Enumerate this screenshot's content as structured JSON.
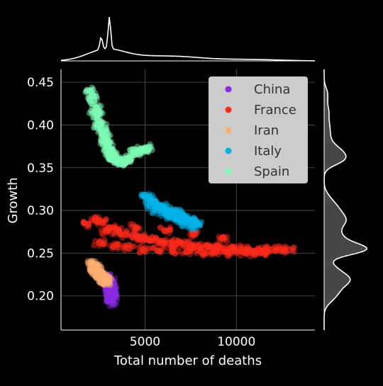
{
  "chart_data": {
    "type": "scatter",
    "title": "",
    "xlabel": "Total number of deaths",
    "ylabel": "Growth",
    "xlim": [
      400,
      14300
    ],
    "ylim": [
      0.16,
      0.465
    ],
    "x_ticks": [
      5000,
      10000
    ],
    "x_tick_labels": [
      "5000",
      "10000"
    ],
    "y_ticks": [
      0.2,
      0.25,
      0.3,
      0.35,
      0.4,
      0.45
    ],
    "y_tick_labels": [
      "0.20",
      "0.25",
      "0.30",
      "0.35",
      "0.40",
      "0.45"
    ],
    "grid": true,
    "legend_position": "top-right",
    "marginals": "kde + histogram on top (x) and right (y)",
    "background": "#000000",
    "series": [
      {
        "name": "China",
        "color": "#8a2be2",
        "x": [
          3000,
          3060,
          3100,
          3150,
          3200,
          3080,
          3130,
          3180,
          3050,
          3120,
          3170,
          3220,
          3090,
          3140,
          3040,
          3160,
          3110,
          3190
        ],
        "y": [
          0.222,
          0.218,
          0.214,
          0.209,
          0.204,
          0.212,
          0.206,
          0.199,
          0.216,
          0.21,
          0.201,
          0.195,
          0.213,
          0.203,
          0.22,
          0.198,
          0.207,
          0.192
        ]
      },
      {
        "name": "France",
        "color": "#ff2a1a",
        "x": [
          1900,
          2300,
          2700,
          3100,
          3500,
          3900,
          4300,
          4700,
          5100,
          5500,
          5900,
          6300,
          6700,
          7100,
          7500,
          7900,
          8300,
          8700,
          9100,
          9500,
          9900,
          10300,
          10700,
          11100,
          11500,
          11900,
          12400,
          12900,
          2500,
          3300,
          4100,
          4900,
          5700,
          6500,
          7300,
          8100,
          8900,
          9700,
          10500,
          11300,
          2900,
          4500,
          6100,
          7700,
          9300
        ],
        "y": [
          0.284,
          0.29,
          0.286,
          0.28,
          0.276,
          0.272,
          0.27,
          0.268,
          0.266,
          0.265,
          0.264,
          0.262,
          0.261,
          0.26,
          0.259,
          0.258,
          0.257,
          0.256,
          0.256,
          0.255,
          0.255,
          0.254,
          0.254,
          0.253,
          0.253,
          0.254,
          0.254,
          0.254,
          0.262,
          0.258,
          0.256,
          0.254,
          0.253,
          0.253,
          0.252,
          0.251,
          0.251,
          0.25,
          0.25,
          0.25,
          0.275,
          0.28,
          0.276,
          0.272,
          0.268
        ]
      },
      {
        "name": "Iran",
        "color": "#ffb070",
        "x": [
          2100,
          2150,
          2200,
          2250,
          2300,
          2350,
          2400,
          2450,
          2500,
          2550,
          2600,
          2650,
          2700,
          2750,
          2800,
          2850,
          2900
        ],
        "y": [
          0.238,
          0.236,
          0.234,
          0.232,
          0.23,
          0.229,
          0.227,
          0.226,
          0.225,
          0.223,
          0.222,
          0.221,
          0.22,
          0.219,
          0.218,
          0.217,
          0.216
        ]
      },
      {
        "name": "Italy",
        "color": "#00b4e8",
        "x": [
          5000,
          5200,
          5400,
          5600,
          5800,
          6000,
          6200,
          6400,
          6600,
          6800,
          7000,
          7200,
          7400,
          7600,
          7800,
          5300,
          5700,
          6100,
          6500,
          6900,
          7300,
          7700
        ],
        "y": [
          0.318,
          0.314,
          0.311,
          0.308,
          0.306,
          0.304,
          0.301,
          0.299,
          0.297,
          0.295,
          0.293,
          0.291,
          0.289,
          0.288,
          0.286,
          0.305,
          0.3,
          0.296,
          0.292,
          0.289,
          0.285,
          0.282
        ]
      },
      {
        "name": "Spain",
        "color": "#7dfcb5",
        "x": [
          2000,
          2100,
          2200,
          2300,
          2400,
          2500,
          2600,
          2700,
          2800,
          2900,
          3000,
          3100,
          3200,
          3300,
          3400,
          3500,
          3600,
          3700,
          3800,
          3900,
          4000,
          4200,
          4400,
          4600,
          4800,
          5000,
          5200,
          2250,
          2450,
          2650,
          2850,
          3050,
          3250,
          3450
        ],
        "y": [
          0.44,
          0.435,
          0.428,
          0.42,
          0.412,
          0.405,
          0.398,
          0.391,
          0.385,
          0.379,
          0.374,
          0.37,
          0.366,
          0.363,
          0.36,
          0.358,
          0.357,
          0.356,
          0.356,
          0.357,
          0.36,
          0.363,
          0.368,
          0.366,
          0.372,
          0.37,
          0.374,
          0.415,
          0.4,
          0.39,
          0.38,
          0.368,
          0.362,
          0.359
        ]
      }
    ]
  }
}
